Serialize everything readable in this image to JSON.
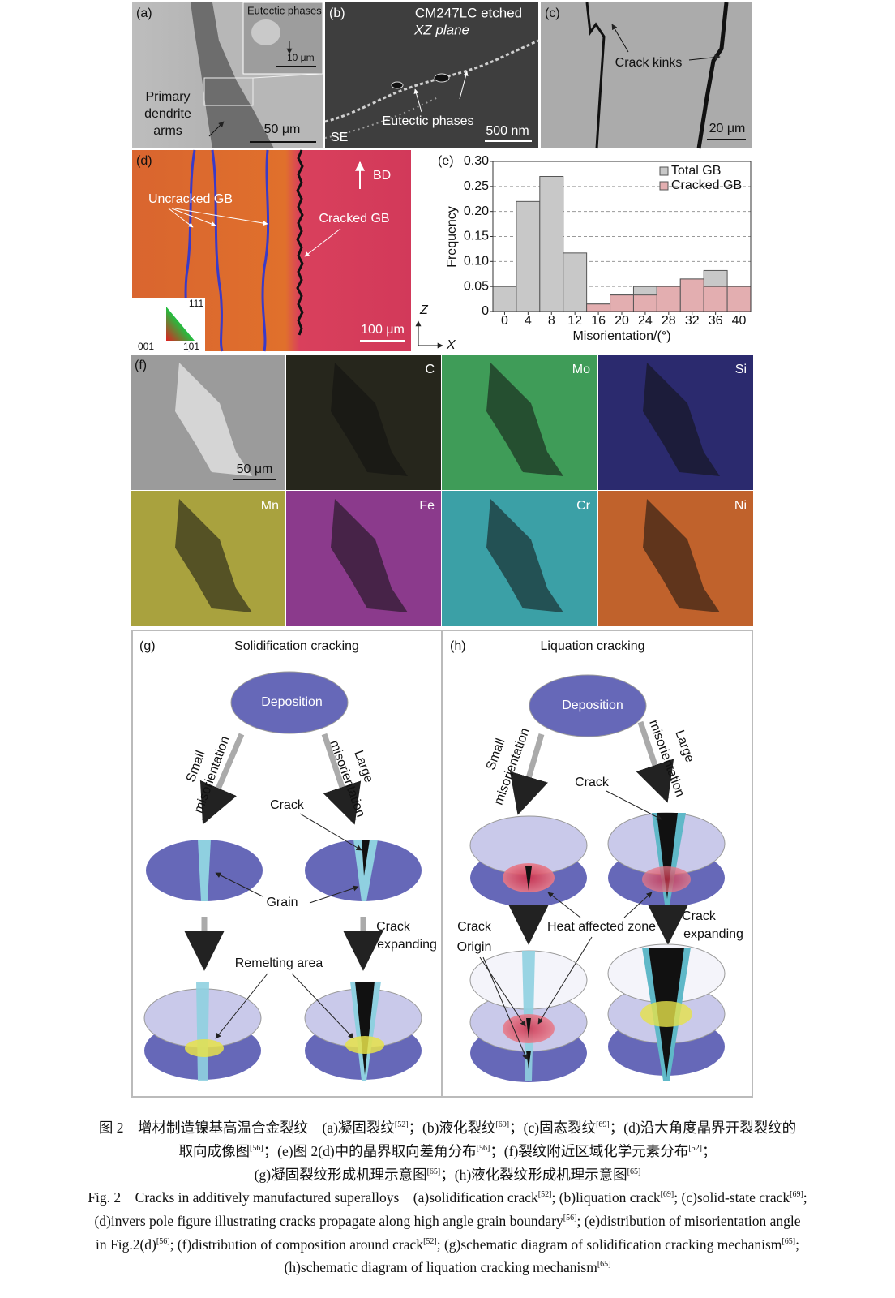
{
  "panels": {
    "a": {
      "label": "(a)",
      "inset_label": "Eutectic phases",
      "inset_scale": "10 μm",
      "dendrite_lines": [
        "Primary",
        "dendrite",
        "arms"
      ],
      "scale": "50 μm"
    },
    "b": {
      "label": "(b)",
      "title_lines": [
        "CM247LC etched",
        "XZ plane"
      ],
      "eutectic": "Eutectic phases",
      "scale": "500 nm",
      "mode": "SE"
    },
    "c": {
      "label": "(c)",
      "kinks": "Crack kinks",
      "scale": "20 μm"
    },
    "d": {
      "label": "(d)",
      "bd": "BD",
      "uncracked": "Uncracked GB",
      "cracked": "Cracked GB",
      "ipf": [
        "111",
        "001",
        "101"
      ],
      "scale": "100 μm",
      "axis_z": "Z",
      "axis_x": "X"
    },
    "e": {
      "label": "(e)"
    },
    "f": {
      "label": "(f)",
      "scale": "50 μm",
      "elements": [
        "C",
        "Mo",
        "Si",
        "Mn",
        "Fe",
        "Cr",
        "Ni"
      ]
    },
    "g": {
      "label": "(g)",
      "title": "Solidification cracking",
      "deposition": "Deposition",
      "small": [
        "Small",
        "misorientation"
      ],
      "large": [
        "Large",
        "misorientation"
      ],
      "crack": "Crack",
      "grain": "Grain",
      "expanding": [
        "Crack",
        "expanding"
      ],
      "remelting": "Remelting area"
    },
    "h": {
      "label": "(h)",
      "title": "Liquation cracking",
      "deposition": "Deposition",
      "small": [
        "Small",
        "misorientation"
      ],
      "large": [
        "Large",
        "misorientation"
      ],
      "crack": "Crack",
      "origin": [
        "Crack",
        "Origin"
      ],
      "haz": "Heat affected zone",
      "expanding": [
        "Crack",
        "expanding"
      ]
    }
  },
  "chart_data": {
    "type": "bar",
    "x": [
      0,
      4,
      8,
      12,
      16,
      20,
      24,
      28,
      32,
      36,
      40
    ],
    "series": [
      {
        "name": "Total GB",
        "color": "#c8c8c8",
        "values": [
          0.05,
          0.22,
          0.27,
          0.117,
          0.015,
          0.033,
          0.05,
          0.05,
          0.065,
          0.082,
          0.05
        ]
      },
      {
        "name": "Cracked GB",
        "color": "#e3aeb0",
        "values": [
          0,
          0,
          0,
          0,
          0.015,
          0.033,
          0.033,
          0.05,
          0.065,
          0.05,
          0.05
        ]
      }
    ],
    "xlabel": "Misorientation/(°)",
    "ylabel": "Frequency",
    "xlim": [
      -2,
      42
    ],
    "ylim": [
      0,
      0.3
    ],
    "xticks": [
      0,
      4,
      8,
      12,
      16,
      20,
      24,
      28,
      32,
      36,
      40
    ],
    "yticks": [
      0,
      0.05,
      {
        "value": 0.1,
        "label": "0.10"
      },
      0.15,
      {
        "value": 0.2,
        "label": "0.20"
      },
      0.25,
      {
        "value": 0.3,
        "label": "0.30"
      }
    ],
    "grid": true,
    "legend": "upper right"
  },
  "caption_cn": [
    [
      "图 2　增材制造镍基高温合金裂纹　(a)凝固裂纹",
      "[52]",
      "；(b)液化裂纹",
      "[69]",
      "；(c)固态裂纹",
      "[69]",
      "；(d)沿大角度晶界开裂裂纹的"
    ],
    [
      "取向成像图",
      "[56]",
      "；(e)图 2(d)中的晶界取向差角分布",
      "[56]",
      "；(f)裂纹附近区域化学元素分布",
      "[52]",
      "；"
    ],
    [
      "(g)凝固裂纹形成机理示意图",
      "[65]",
      "；(h)液化裂纹形成机理示意图",
      "[65]"
    ]
  ],
  "caption_en": [
    [
      "Fig. 2　Cracks in additively manufactured superalloys　(a)solidification crack",
      "[52]",
      "; (b)liquation crack",
      "[69]",
      "; (c)solid-state crack",
      "[69]",
      ";"
    ],
    [
      "(d)invers pole figure illustrating cracks propagate along high angle grain boundary",
      "[56]",
      "; (e)distribution of misorientation angle"
    ],
    [
      "in Fig.2(d)",
      "[56]",
      "; (f)distribution of composition around crack",
      "[52]",
      "; (g)schematic diagram of solidification cracking mechanism",
      "[65]",
      ";"
    ],
    [
      "(h)schematic diagram of liquation cracking mechanism",
      "[65]"
    ]
  ]
}
